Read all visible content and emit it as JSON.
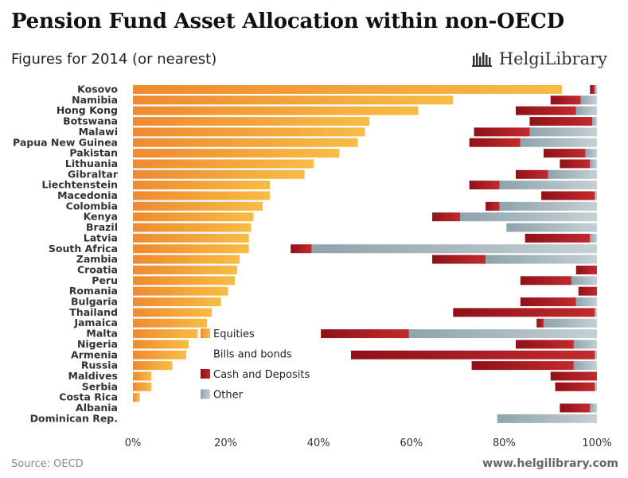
{
  "header": {
    "title": "Pension Fund Asset Allocation within non-OECD",
    "subtitle": "Figures for 2014 (or nearest)"
  },
  "brand": {
    "name": "HelgiLibrary",
    "icon": "library-logo-icon"
  },
  "footer": {
    "source": "Source: OECD",
    "website": "www.helgilibrary.com"
  },
  "colors": {
    "equities": "#f4a13a",
    "bonds": "#ffffff",
    "cash": "#a11a20",
    "other": "#a7b6bd"
  },
  "chart_data": {
    "type": "bar",
    "orientation": "horizontal",
    "stacked": true,
    "title": "Pension Fund Asset Allocation within non-OECD",
    "subtitle": "Figures for 2014 (or nearest)",
    "xlim": [
      0,
      100
    ],
    "xticks": [
      "0%",
      "20%",
      "40%",
      "60%",
      "80%",
      "100%"
    ],
    "legend": {
      "placement": "center-left",
      "entries": [
        "Equities",
        "Bills and bonds",
        "Cash and Deposits",
        "Other"
      ]
    },
    "categories": [
      "Kosovo",
      "Namibia",
      "Hong Kong",
      "Botswana",
      "Malawi",
      "Papua New Guinea",
      "Pakistan",
      "Lithuania",
      "Gibraltar",
      "Liechtenstein",
      "Macedonia",
      "Colombia",
      "Kenya",
      "Brazil",
      "Latvia",
      "South Africa",
      "Zambia",
      "Croatia",
      "Peru",
      "Romania",
      "Bulgaria",
      "Thailand",
      "Jamaica",
      "Malta",
      "Nigeria",
      "Armenia",
      "Russia",
      "Maldives",
      "Serbia",
      "Costa Rica",
      "Albania",
      "Dominican Rep."
    ],
    "series": [
      {
        "name": "Equities",
        "values": [
          92.5,
          69,
          61.5,
          51,
          50,
          48.5,
          44.5,
          39,
          37,
          29.5,
          29.5,
          28,
          26,
          25.5,
          25,
          25,
          23,
          22.5,
          22,
          20.5,
          19,
          17,
          16,
          14,
          12,
          11.5,
          8.5,
          4,
          4,
          1.5,
          0,
          0
        ]
      },
      {
        "name": "Bills and bonds",
        "values": [
          6,
          21,
          21,
          34.5,
          23.5,
          24,
          44,
          53,
          45.5,
          43,
          58.5,
          48,
          38.5,
          55,
          59.5,
          9,
          41.5,
          73,
          61.5,
          75.5,
          64.5,
          52,
          71,
          26.5,
          70.5,
          35.5,
          64.5,
          86,
          87,
          98.5,
          92,
          78.5
        ]
      },
      {
        "name": "Cash and Deposits",
        "values": [
          1,
          6.5,
          13,
          13.5,
          12,
          11,
          9,
          6.5,
          7,
          6.5,
          11.5,
          3,
          6,
          0,
          14,
          4.5,
          11.5,
          4.5,
          11,
          4,
          12,
          30.5,
          1.5,
          19,
          12.5,
          52.5,
          22,
          10,
          8.5,
          0,
          6.5,
          0
        ]
      },
      {
        "name": "Other",
        "values": [
          0.5,
          3.5,
          4.5,
          1,
          14.5,
          16.5,
          2.5,
          1.5,
          10.5,
          21,
          0.5,
          21,
          29.5,
          19.5,
          1.5,
          61.5,
          24,
          0,
          5.5,
          0,
          4.5,
          0.5,
          11.5,
          40.5,
          5,
          0.5,
          5,
          0,
          0.5,
          0,
          1.5,
          21.5
        ]
      }
    ]
  }
}
